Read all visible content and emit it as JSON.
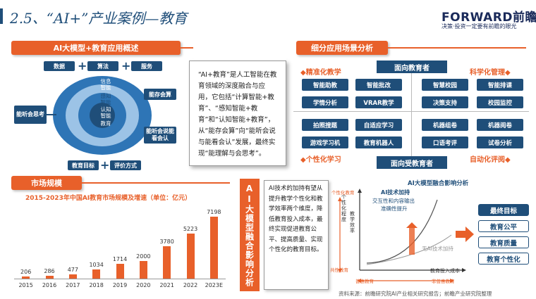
{
  "header": {
    "title": "2.5、“AI+”产业案例—教育",
    "logo_main": "FORWARD前瞻",
    "logo_sub": "决策·投资一定要有前瞻的眼光"
  },
  "overview": {
    "banner": "AI大模型+教育应用概述",
    "top_boxes": [
      "数据",
      "算法",
      "服务"
    ],
    "left_box": "能听会思考",
    "right_top_box": "能存会算",
    "right_bottom_box": "能听会说能看会认",
    "bottom_boxes": [
      "教育目标",
      "评价方式"
    ],
    "ring_outer": [
      "信息",
      "智能"
    ],
    "ring_mid": [
      "感知",
      "智能"
    ],
    "ring_inner": [
      "认知",
      "智能"
    ],
    "core_text": "教育"
  },
  "quote": {
    "text": "“AI+教育”是人工智能在教育领域的深度融合与应用，它包括“计算智能+教育”、“感知智能+教育”和“认知智能+教育”，从“能存会算”向“能听会说与能看会认”发展，最终实现“能理解与会思考”。"
  },
  "scenarios": {
    "banner": "细分应用场景分析",
    "axis_top": "面向教育者",
    "axis_bottom": "面向受教育者",
    "corner_tl": "◆精准化教学",
    "corner_tr": "科学化管理◆",
    "corner_bl": "◆个性化学习",
    "corner_br": "自动化评阅◆",
    "tiles_tl": [
      "智能助教",
      "智能批改",
      "学情分析",
      "VRAR教学"
    ],
    "tiles_tr": [
      "智慧校园",
      "智能排课",
      "决策支持",
      "校园监控"
    ],
    "tiles_bl": [
      "拍照搜题",
      "自适应学习",
      "游戏学习机",
      "教育机器人"
    ],
    "tiles_br": [
      "机器组卷",
      "机器阅卷",
      "口语考评",
      "试卷分析"
    ]
  },
  "market": {
    "banner": "市场规模",
    "chart_title": "2015-2023年中国AI教育市场规模及增速（单位：亿元）"
  },
  "chart_data": {
    "type": "bar",
    "title": "2015-2023年中国AI教育市场规模及增速（单位：亿元）",
    "categories": [
      "2015",
      "2016",
      "2017",
      "2018",
      "2019",
      "2020",
      "2021",
      "2022",
      "2023E"
    ],
    "values": [
      206,
      286,
      477,
      1034,
      1714,
      2000,
      3780,
      5223,
      7198
    ],
    "ylim": [
      0,
      7500
    ],
    "bar_color": "#e8602a"
  },
  "impact": {
    "side_title": "AI大模型融合影响分析",
    "text": "AI技术的加持有望从提升教学个性化和教学效率两个维度，降低教育投入成本，最终实现促进教育公平、提高质量、实现个性化的教育目标。",
    "graph_title": "AI大模型融合影响分析",
    "y_axis": "个性化程度",
    "y_axis2": "教学效率",
    "x_axis": "教育投入成本",
    "label_ai": "AI技术加持",
    "label_ai_sub1": "交互性和内容输出",
    "label_ai_sub2": "准确性提升",
    "label_noai": "无AI技术加持",
    "corner_top": "个性化教育",
    "corner_bl": "共性教育",
    "corner_br": "非普惠教育",
    "corner_mid": "普惠教育",
    "goal_header": "最终目标",
    "goals": [
      "教育公平",
      "教育质量",
      "教育个性化"
    ],
    "source": "资料来源：前瞻研究院AI产业相关研究报告；前瞻产业研究院整理"
  },
  "colors": {
    "accent": "#e8602a",
    "navy": "#1f4e79",
    "light_blue": "#9cc3e6"
  }
}
